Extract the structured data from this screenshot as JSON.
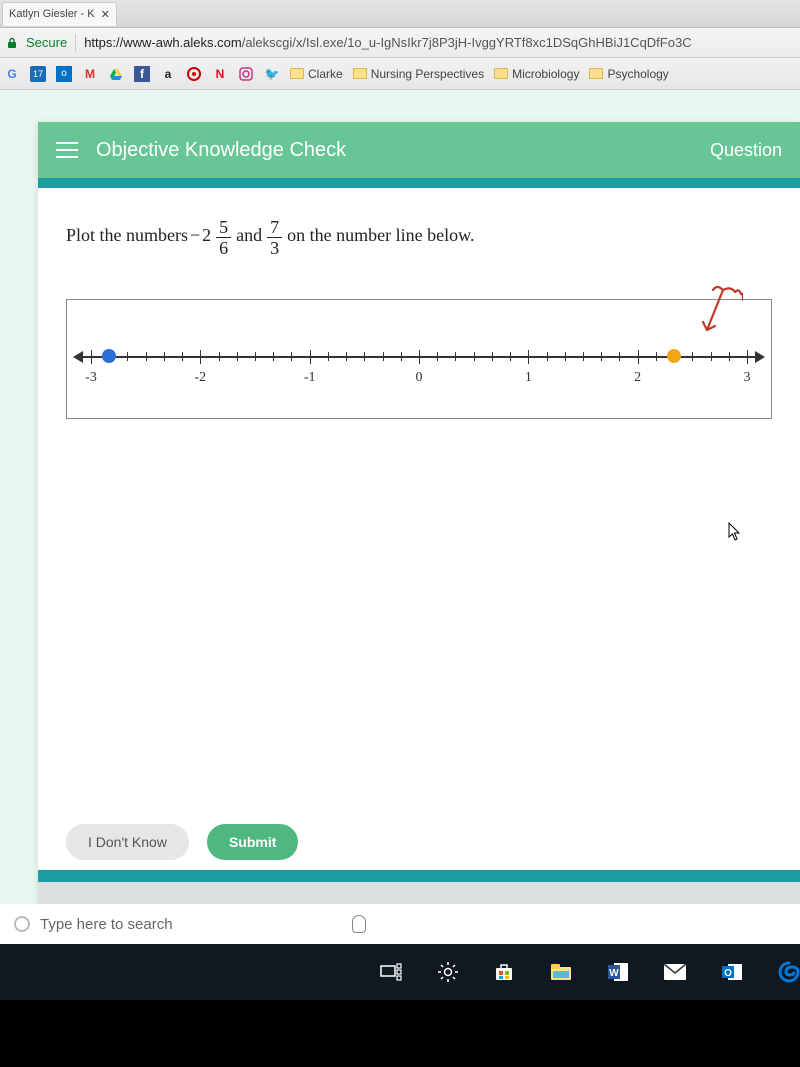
{
  "browser": {
    "tab_title": "Katlyn Giesler - K",
    "secure_label": "Secure",
    "url_host": "https://www-awh.aleks.com",
    "url_path": "/alekscgi/x/Isl.exe/1o_u-IgNsIkr7j8P3jH-IvggYRTf8xc1DSqGhHBiJ1CqDfFo3C"
  },
  "bookmarks": [
    {
      "label": "Clarke"
    },
    {
      "label": "Nursing Perspectives"
    },
    {
      "label": "Microbiology"
    },
    {
      "label": "Psychology"
    }
  ],
  "header": {
    "title": "Objective Knowledge Check",
    "right_label": "Question"
  },
  "question": {
    "prompt_before": "Plot the numbers ",
    "neg": "−",
    "whole1": "2",
    "num1": "5",
    "den1": "6",
    "and": " and ",
    "num2": "7",
    "den2": "3",
    "prompt_after": " on the number line below."
  },
  "numberline": {
    "min": -3,
    "max": 3,
    "major_ticks": [
      -3,
      -2,
      -1,
      0,
      1,
      2,
      3
    ],
    "minor_per_unit": 6,
    "labels": [
      "-3",
      "-2",
      "-1",
      "0",
      "1",
      "2",
      "3"
    ],
    "points": [
      {
        "value": -2.8333,
        "color": "#2b6fd6"
      },
      {
        "value": 2.3333,
        "color": "#f0a818"
      }
    ],
    "axis_color": "#333333",
    "box_border": "#888888"
  },
  "buttons": {
    "idk": "I Don't Know",
    "submit": "Submit"
  },
  "os": {
    "search_placeholder": "Type here to search"
  },
  "colors": {
    "header_bg": "#68c596",
    "teal": "#1a9ea1",
    "submit_bg": "#4fb881",
    "idk_bg": "#e6e6e6"
  }
}
